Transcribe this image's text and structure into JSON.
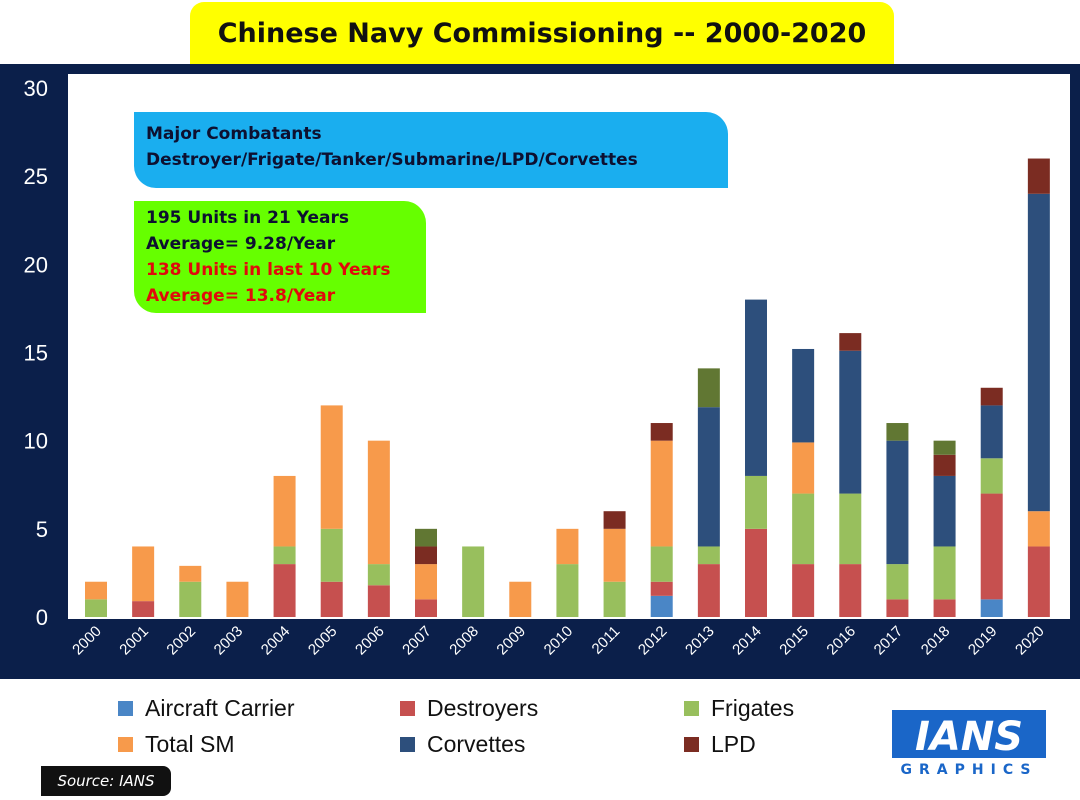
{
  "title": "Chinese Navy Commissioning -- 2000-2020",
  "notes": {
    "box1_line1": "Major Combatants",
    "box1_line2": "Destroyer/Frigate/Tanker/Submarine/LPD/Corvettes",
    "box2_line1": "195 Units in 21 Years",
    "box2_line2": "Average= 9.28/Year",
    "box2_line3": "138 Units in last 10 Years",
    "box2_line4": "Average= 13.8/Year"
  },
  "source": "Source: IANS",
  "logo": {
    "top": "IANS",
    "bottom": "GRAPHICS"
  },
  "colors": {
    "band": "#0b1f4a",
    "title_bg": "#ffff00",
    "note_blue": "#1aaeef",
    "note_green": "#66ff00"
  },
  "chart_data": {
    "type": "bar",
    "stacked": true,
    "categories": [
      "2000",
      "2001",
      "2002",
      "2003",
      "2004",
      "2005",
      "2006",
      "2007",
      "2008",
      "2009",
      "2010",
      "2011",
      "2012",
      "2013",
      "2014",
      "2015",
      "2016",
      "2017",
      "2018",
      "2019",
      "2020"
    ],
    "ylim": [
      0,
      30
    ],
    "yticks": [
      0,
      5,
      10,
      15,
      20,
      25,
      30
    ],
    "grid": false,
    "legend_position": "bottom",
    "series": [
      {
        "name": "Aircraft Carrier",
        "color": "#4a86c6",
        "values": [
          0,
          0,
          0,
          0,
          0,
          0,
          0,
          0,
          0,
          0,
          0,
          0,
          1.2,
          0,
          0,
          0,
          0,
          0,
          0,
          1,
          0
        ]
      },
      {
        "name": "Destroyers",
        "color": "#c6504f",
        "values": [
          0,
          0.9,
          0,
          0,
          3,
          2,
          1.8,
          1,
          0,
          0,
          0,
          0,
          0.8,
          3,
          5,
          3,
          3,
          1,
          1,
          6,
          4
        ]
      },
      {
        "name": "Frigates",
        "color": "#98bf5d",
        "values": [
          1,
          0,
          2,
          0,
          1,
          3,
          1.2,
          0,
          4,
          0,
          3,
          2,
          2,
          1,
          3,
          4,
          4,
          2,
          3,
          2,
          0
        ]
      },
      {
        "name": "Total SM",
        "color": "#f79a4b",
        "values": [
          1,
          3.1,
          0.9,
          2,
          4,
          7,
          7,
          2,
          0,
          2,
          2,
          3,
          6,
          0,
          0,
          2.9,
          0,
          0,
          0,
          0,
          2
        ]
      },
      {
        "name": "Corvettes",
        "color": "#2d4f7c",
        "values": [
          0,
          0,
          0,
          0,
          0,
          0,
          0,
          0,
          0,
          0,
          0,
          0,
          0,
          7.9,
          10,
          5.3,
          8.1,
          7,
          4,
          3,
          18
        ]
      },
      {
        "name": "LPD",
        "color": "#7b2c22",
        "values": [
          0,
          0,
          0,
          0,
          0,
          0,
          0,
          1,
          0,
          0,
          0,
          1,
          1,
          0,
          0,
          0,
          1,
          0,
          1.2,
          1,
          2
        ]
      },
      {
        "name": "",
        "color": "#617733",
        "values": [
          0,
          0,
          0,
          0,
          0,
          0,
          0,
          1,
          0,
          0,
          0,
          0,
          0,
          2.2,
          0,
          0,
          0,
          1,
          0.8,
          0,
          0
        ]
      }
    ]
  },
  "legend": [
    {
      "label": "Aircraft Carrier",
      "color": "#4a86c6"
    },
    {
      "label": "Destroyers",
      "color": "#c6504f"
    },
    {
      "label": "Frigates",
      "color": "#98bf5d"
    },
    {
      "label": "Total SM",
      "color": "#f79a4b"
    },
    {
      "label": "Corvettes",
      "color": "#2d4f7c"
    },
    {
      "label": "LPD",
      "color": "#7b2c22"
    }
  ]
}
